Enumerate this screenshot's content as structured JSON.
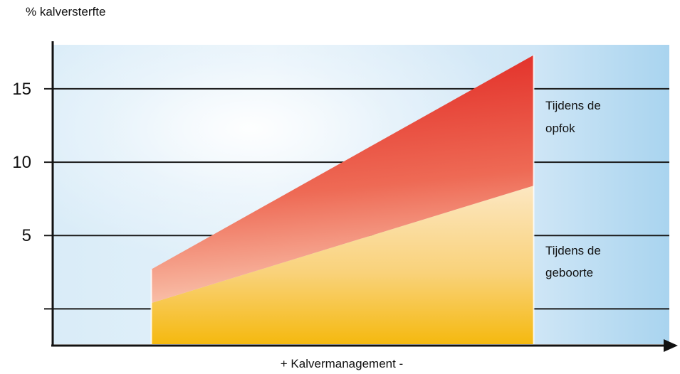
{
  "chart_data": {
    "type": "area",
    "ylabel": "% kalversterfte",
    "xlabel": "+ Kalvermanagement -",
    "yticks": [
      {
        "value": 0,
        "label": ""
      },
      {
        "value": 5,
        "label": "5"
      },
      {
        "value": 10,
        "label": "10"
      },
      {
        "value": 15,
        "label": "15"
      }
    ],
    "ylim": [
      -2.5,
      18
    ],
    "xlim": [
      0,
      1
    ],
    "x": [
      0.16,
      0.78
    ],
    "series": [
      {
        "name": "Tijdens de geboorte",
        "values": [
          0.4,
          8.4
        ]
      },
      {
        "name": "Tijdens de opfok",
        "values": [
          2.3,
          8.9
        ]
      }
    ],
    "legend": [
      {
        "line1": "Tijdens de",
        "line2": "opfok"
      },
      {
        "line1": "Tijdens de",
        "line2": "geboorte"
      }
    ],
    "grid": true,
    "colors": {
      "background_light": "#f4f9fd",
      "background_dark": "#a9d4ef",
      "lower_top": "#fce3b6",
      "lower_bottom": "#f7bd16",
      "upper_top": "#e42a25",
      "upper_bottom": "#f8b9a3",
      "axis": "#111111",
      "grid": "#1a1a1a"
    }
  }
}
